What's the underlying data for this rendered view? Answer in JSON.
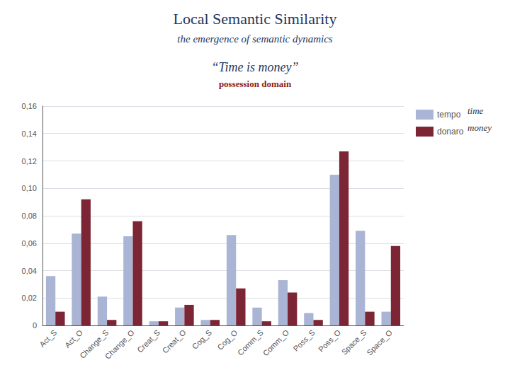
{
  "chart_data": {
    "type": "bar",
    "title": "Local Semantic Similarity",
    "subtitle": "the emergence of semantic dynamics",
    "annotations": [
      "“Time is money”",
      "possession domain",
      "time",
      "money"
    ],
    "categories": [
      "Act_S",
      "Act_O",
      "Change_S",
      "Change_O",
      "Creat_S",
      "Creat_O",
      "Cog_S",
      "Cog_O",
      "Comm_S",
      "Comm_O",
      "Poss_S",
      "Poss_O",
      "Space_S",
      "Space_O"
    ],
    "series": [
      {
        "name": "tempo",
        "color": "#aab4d4",
        "values": [
          0.036,
          0.067,
          0.021,
          0.065,
          0.003,
          0.013,
          0.004,
          0.066,
          0.013,
          0.033,
          0.009,
          0.11,
          0.069,
          0.01
        ]
      },
      {
        "name": "donaro",
        "color": "#7b2535",
        "values": [
          0.01,
          0.092,
          0.004,
          0.076,
          0.003,
          0.015,
          0.004,
          0.027,
          0.003,
          0.024,
          0.004,
          0.127,
          0.01,
          0.058
        ]
      }
    ],
    "ylim": [
      0,
      0.16
    ],
    "yticks": [
      0,
      {
        "value": 0.02,
        "label": "0,02"
      },
      {
        "value": 0.04,
        "label": "0,04"
      },
      {
        "value": 0.06,
        "label": "0,06"
      },
      {
        "value": 0.08,
        "label": "0,08"
      },
      {
        "value": 0.1,
        "label": "0,10"
      },
      {
        "value": 0.12,
        "label": "0,12"
      },
      {
        "value": 0.14,
        "label": "0,14"
      },
      {
        "value": 0.16,
        "label": "0,16"
      }
    ],
    "grid": true,
    "legend": "upper right"
  }
}
